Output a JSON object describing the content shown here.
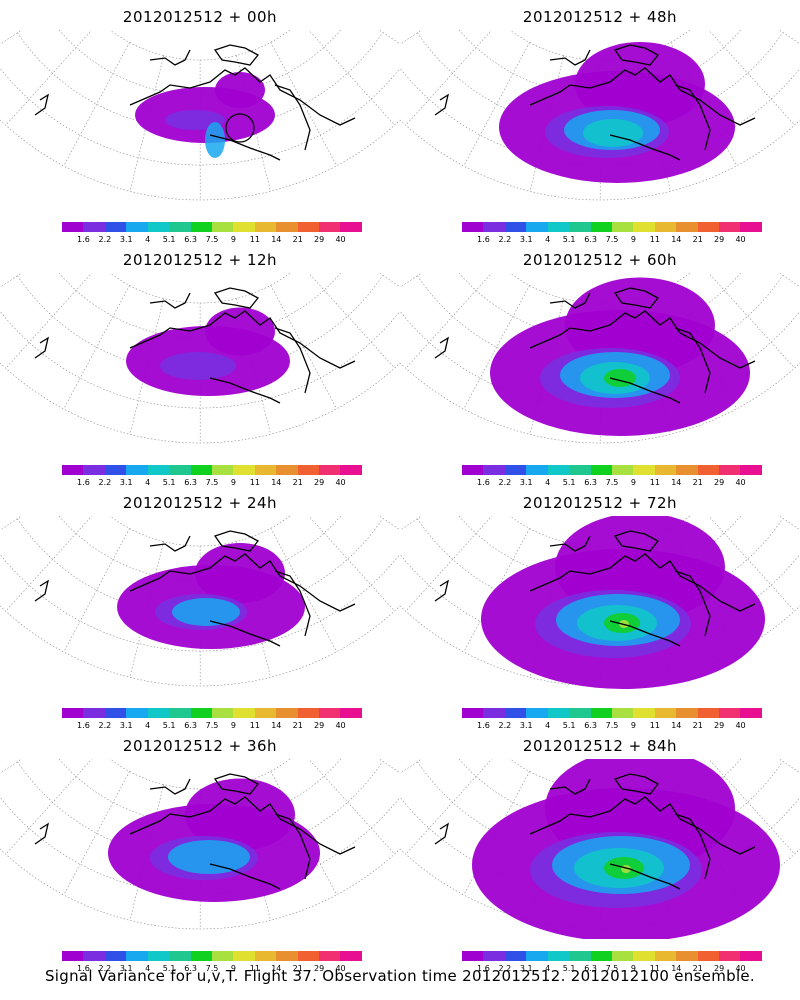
{
  "panels": [
    {
      "title": "2012012512 + 00h",
      "intensity": 0
    },
    {
      "title": "2012012512 + 48h",
      "intensity": 4
    },
    {
      "title": "2012012512 + 12h",
      "intensity": 1
    },
    {
      "title": "2012012512 + 60h",
      "intensity": 5
    },
    {
      "title": "2012012512 + 24h",
      "intensity": 2
    },
    {
      "title": "2012012512 + 72h",
      "intensity": 6
    },
    {
      "title": "2012012512 + 36h",
      "intensity": 3
    },
    {
      "title": "2012012512 + 84h",
      "intensity": 7
    }
  ],
  "colorbar": {
    "colors": [
      "#a000d0",
      "#7a2ee0",
      "#3050e8",
      "#18a8f0",
      "#10c8c8",
      "#20c890",
      "#10d020",
      "#a8e040",
      "#e0e030",
      "#e8b830",
      "#e89030",
      "#f06030",
      "#f03070",
      "#e81090"
    ],
    "labels": [
      "1.6",
      "2.2",
      "3.1",
      "4",
      "5.1",
      "6.3",
      "7.5",
      "9",
      "11",
      "14",
      "21",
      "29",
      "40"
    ]
  },
  "footer": "Signal Variance for u,v,T. Flight 37. Observation time 2012012512. 2012012100 ensemble."
}
